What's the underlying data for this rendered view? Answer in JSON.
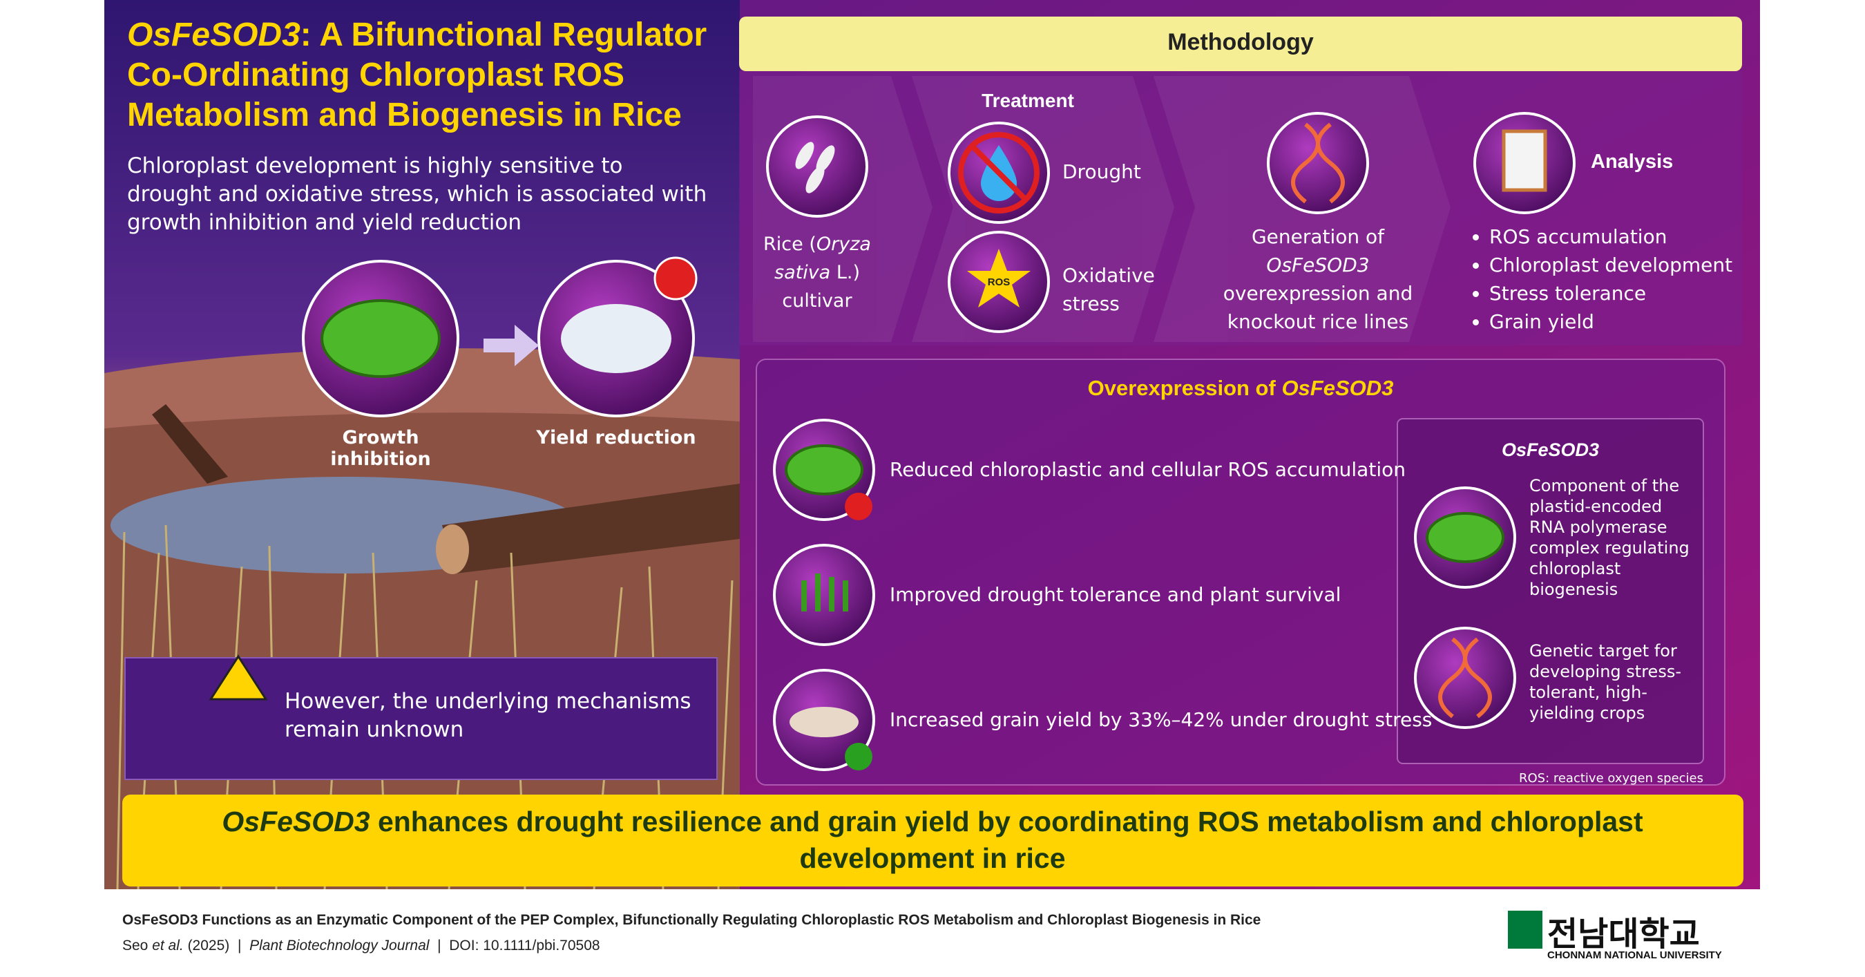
{
  "header": {
    "title_gene": "OsFeSOD3",
    "title_rest": ": A Bifunctional Regulator Co-Ordinating Chloroplast ROS Metabolism and Biogenesis in Rice",
    "intro": "Chloroplast development is highly sensitive to drought and oxidative stress, which is associated with growth inhibition and yield reduction"
  },
  "effects": [
    "Growth inhibition",
    "Yield reduction"
  ],
  "warning": "However, the underlying mechanisms remain unknown",
  "methodology": {
    "title": "Methodology",
    "treatment": "Treatment",
    "rice": [
      "Rice (",
      "Oryza sativa",
      " L.) cultivar"
    ],
    "drought": "Drought",
    "oxidative": "Oxidative stress",
    "ros_icon": "ROS",
    "generation": [
      "Generation of ",
      "OsFeSOD3",
      " overexpression and knockout rice lines"
    ],
    "analysis": "Analysis",
    "analysis_items": [
      "ROS accumulation",
      "Chloroplast development",
      "Stress tolerance",
      "Grain yield"
    ]
  },
  "overexpression": {
    "title_prefix": "Overexpression of ",
    "title_gene": "OsFeSOD3",
    "results": [
      "Reduced chloroplastic and cellular ROS accumulation",
      "Improved drought tolerance and plant survival",
      "Increased grain yield by 33%–42% under drought stress"
    ],
    "gene_box": {
      "title": "OsFeSOD3",
      "items": [
        "Component of the plastid-encoded RNA polymerase complex regulating chloroplast biogenesis",
        "Genetic target for developing stress-tolerant, high-yielding crops"
      ]
    },
    "note": "ROS: reactive oxygen species"
  },
  "conclusion": {
    "gene": "OsFeSOD3",
    "text": " enhances drought resilience and grain yield by coordinating ROS metabolism and chloroplast development in rice"
  },
  "footer": {
    "paper_title": "OsFeSOD3 Functions as an Enzymatic Component of the PEP Complex, Bifunctionally Regulating Chloroplastic ROS Metabolism and Chloroplast Biogenesis in Rice",
    "authors": "Seo ",
    "et_al": "et al.",
    "year": " (2025)",
    "separator": "|",
    "journal": "Plant Biotechnology Journal",
    "doi": "DOI: 10.1111/pbi.70508",
    "logo_korean": "전남대학교",
    "logo_english": "CHONNAM NATIONAL UNIVERSITY"
  }
}
